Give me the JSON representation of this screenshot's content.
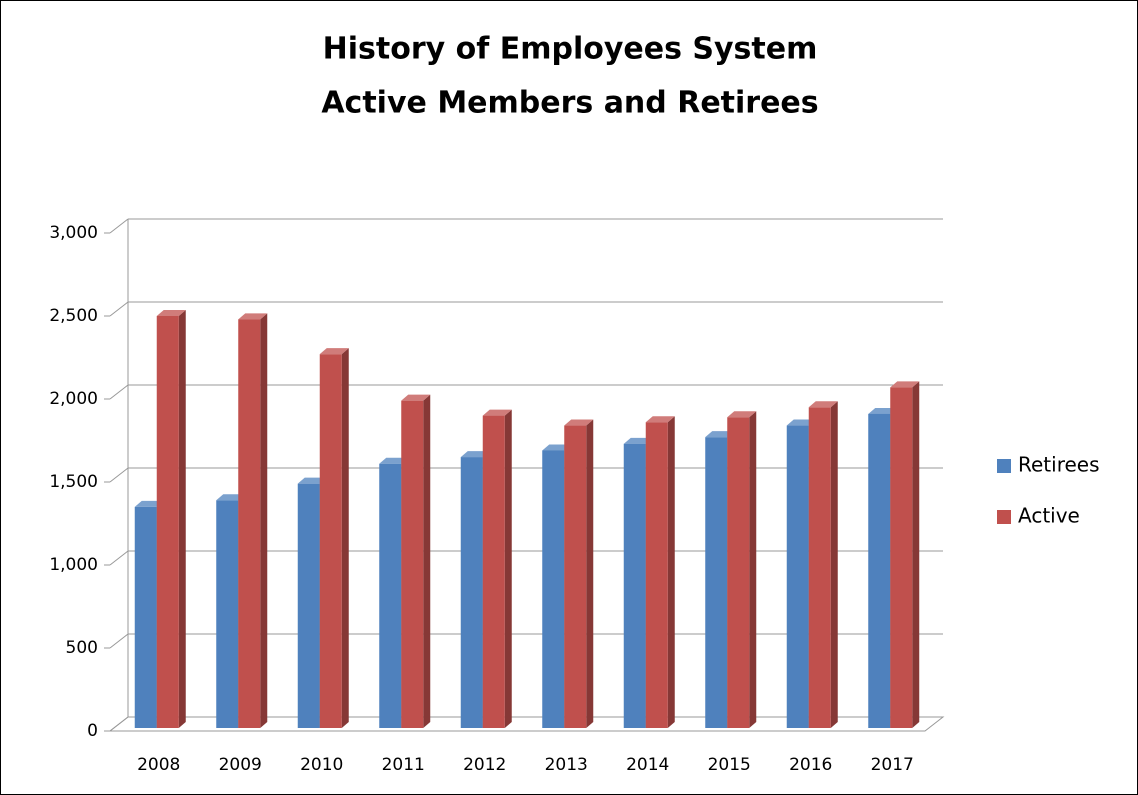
{
  "chart_data": {
    "type": "bar3d",
    "title": "History of Employees System",
    "subtitle": "Active Members and Retirees",
    "categories": [
      "2008",
      "2009",
      "2010",
      "2011",
      "2012",
      "2013",
      "2014",
      "2015",
      "2016",
      "2017"
    ],
    "series": [
      {
        "name": "Retirees",
        "color": "#4f81bd",
        "values": [
          1350,
          1390,
          1490,
          1610,
          1650,
          1690,
          1730,
          1770,
          1840,
          1910
        ]
      },
      {
        "name": "Active",
        "color": "#c0504d",
        "values": [
          2500,
          2480,
          2270,
          1990,
          1900,
          1840,
          1860,
          1890,
          1950,
          2070
        ]
      }
    ],
    "ylim": [
      0,
      3000
    ],
    "yticks": [
      0,
      500,
      {
        "value": 1000,
        "label": "1,000"
      },
      {
        "value": 1500,
        "label": "1,500"
      },
      {
        "value": 2000,
        "label": "2,000"
      },
      {
        "value": 2500,
        "label": "2,500"
      },
      {
        "value": 3000,
        "label": "3,000"
      }
    ],
    "grid": true,
    "legend": "right"
  }
}
